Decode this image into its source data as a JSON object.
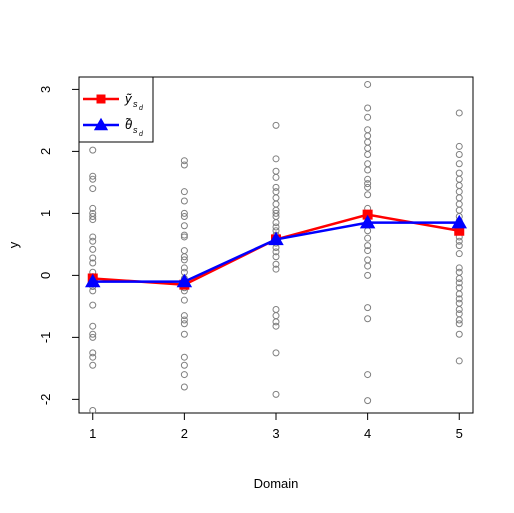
{
  "chart_data": {
    "type": "scatter",
    "title": "",
    "xlabel": "Domain",
    "ylabel": "y",
    "xlim": [
      0.85,
      5.15
    ],
    "ylim": [
      -2.22,
      3.2
    ],
    "x_ticks": [
      1,
      2,
      3,
      4,
      5
    ],
    "y_ticks": [
      -2,
      -1,
      0,
      1,
      2,
      3
    ],
    "grid": false,
    "legend_position": "top-left",
    "points": {
      "color": "#7f7f7f",
      "marker": "open-circle",
      "groups": [
        {
          "x": 1,
          "values": [
            2.02,
            1.6,
            1.55,
            1.4,
            1.08,
            1.0,
            0.95,
            0.9,
            0.62,
            0.55,
            0.42,
            0.28,
            0.2,
            0.05,
            -0.02,
            -0.05,
            -0.12,
            -0.18,
            -0.25,
            -0.48,
            -0.82,
            -0.95,
            -1.0,
            -1.25,
            -1.32,
            -1.45,
            -2.18
          ]
        },
        {
          "x": 2,
          "values": [
            1.85,
            1.78,
            1.35,
            1.2,
            1.0,
            0.95,
            0.8,
            0.65,
            0.62,
            0.4,
            0.3,
            0.25,
            0.12,
            0.05,
            -0.05,
            -0.08,
            -0.12,
            -0.2,
            -0.25,
            -0.4,
            -0.65,
            -0.72,
            -0.78,
            -0.95,
            -1.32,
            -1.45,
            -1.6,
            -1.8
          ]
        },
        {
          "x": 3,
          "values": [
            2.42,
            1.88,
            1.68,
            1.58,
            1.42,
            1.35,
            1.25,
            1.15,
            1.05,
            1.0,
            0.95,
            0.85,
            0.78,
            0.72,
            0.65,
            0.58,
            0.52,
            0.45,
            0.38,
            0.3,
            0.18,
            0.1,
            -0.55,
            -0.65,
            -0.75,
            -0.82,
            -1.25,
            -1.92
          ]
        },
        {
          "x": 4,
          "values": [
            3.08,
            2.7,
            2.55,
            2.35,
            2.25,
            2.15,
            2.05,
            1.95,
            1.8,
            1.7,
            1.55,
            1.48,
            1.42,
            1.3,
            1.08,
            0.98,
            0.85,
            0.72,
            0.6,
            0.48,
            0.4,
            0.25,
            0.15,
            0.0,
            -0.52,
            -0.7,
            -1.6,
            -2.02
          ]
        },
        {
          "x": 5,
          "values": [
            2.62,
            2.08,
            1.95,
            1.8,
            1.65,
            1.55,
            1.45,
            1.35,
            1.25,
            1.15,
            1.05,
            0.95,
            0.88,
            0.82,
            0.75,
            0.62,
            0.55,
            0.48,
            0.35,
            0.12,
            0.05,
            -0.05,
            -0.12,
            -0.2,
            -0.3,
            -0.38,
            -0.45,
            -0.55,
            -0.62,
            -0.72,
            -0.78,
            -0.95,
            -1.38
          ]
        }
      ]
    },
    "series": [
      {
        "key": "y_tilde",
        "color": "#ff0000",
        "marker": "filled-square",
        "x": [
          1,
          2,
          3,
          4,
          5
        ],
        "values": [
          -0.05,
          -0.15,
          0.58,
          0.98,
          0.72
        ]
      },
      {
        "key": "theta_tilde",
        "color": "#0000ff",
        "marker": "filled-triangle",
        "x": [
          1,
          2,
          3,
          4,
          5
        ],
        "values": [
          -0.1,
          -0.1,
          0.58,
          0.85,
          0.85
        ]
      }
    ],
    "legend": {
      "entries": [
        {
          "main": "ỹ",
          "sub": "s",
          "subsub": "d",
          "color": "#ff0000",
          "marker": "filled-square"
        },
        {
          "main": "θ̃",
          "sub": "s",
          "subsub": "d",
          "color": "#0000ff",
          "marker": "filled-triangle"
        }
      ]
    }
  }
}
